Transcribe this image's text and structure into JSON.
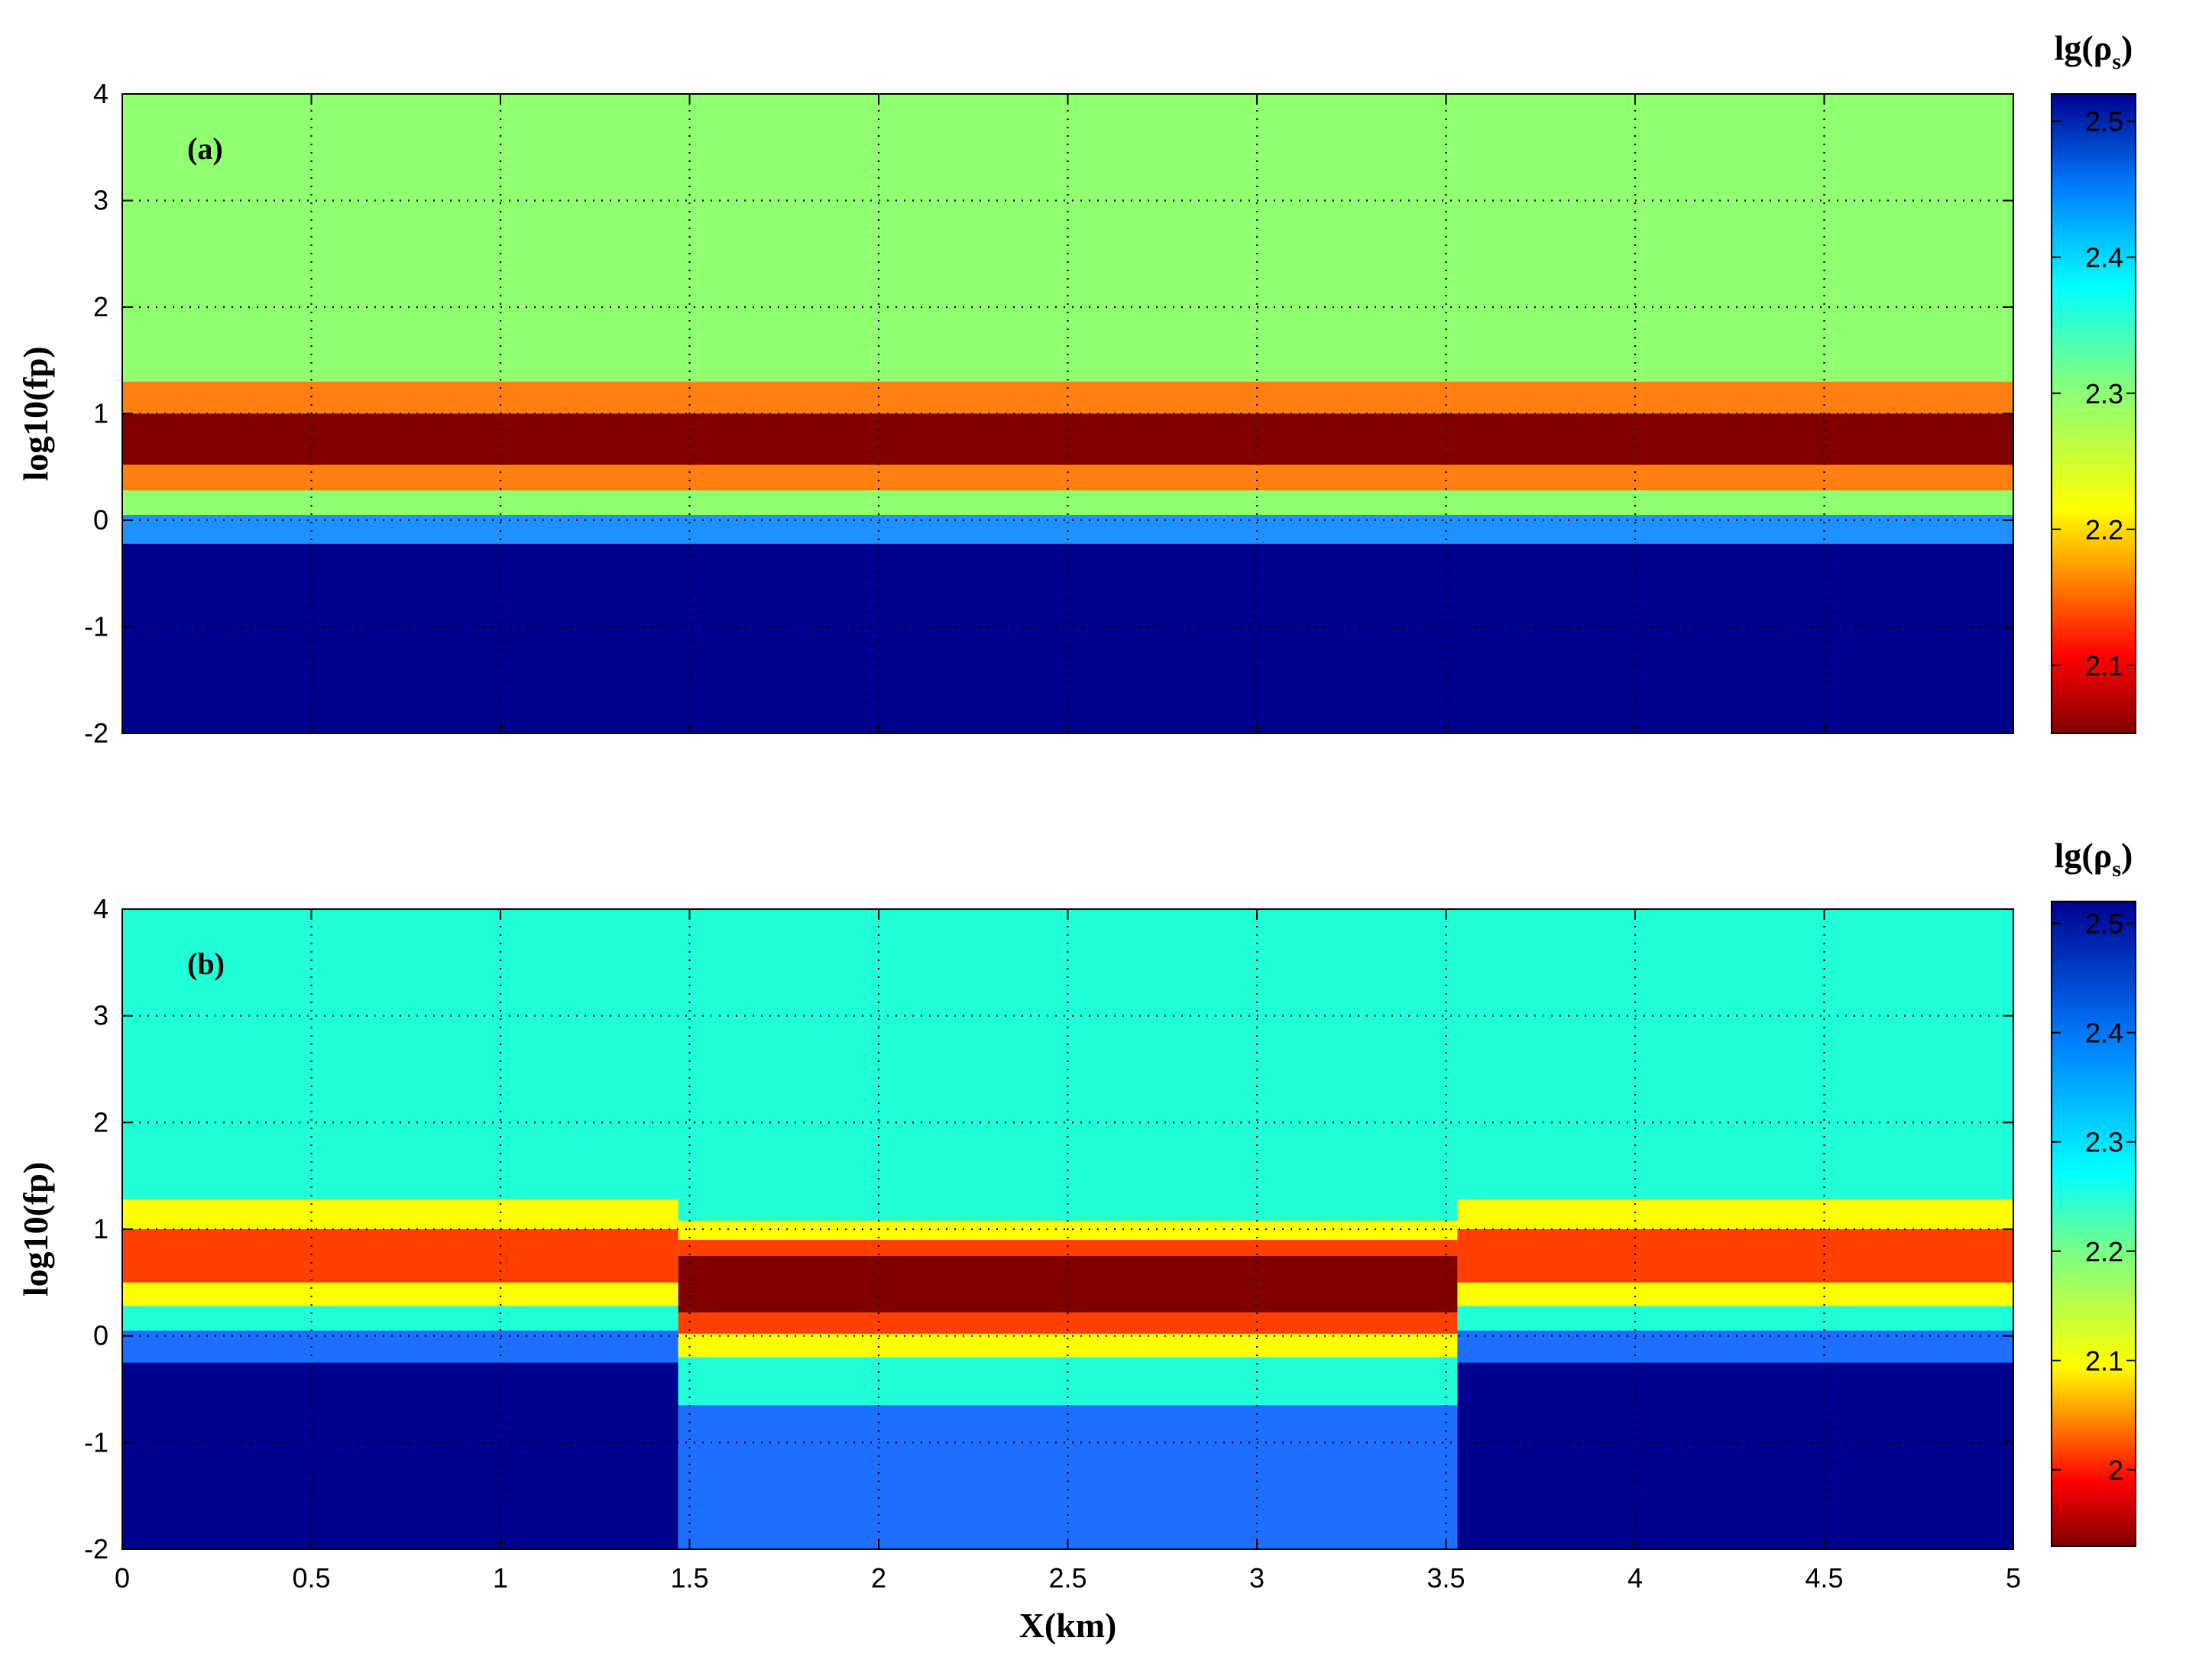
{
  "chart_data": [
    {
      "type": "heatmap",
      "panel_label": "(a)",
      "xlabel": "",
      "ylabel": "log10(fp)",
      "xlim": [
        0,
        5
      ],
      "ylim": [
        -2,
        4
      ],
      "x_ticks": [
        "0",
        "0.5",
        "1",
        "1.5",
        "2",
        "2.5",
        "3",
        "3.5",
        "4",
        "4.5",
        "5"
      ],
      "x_tick_labels_visible": false,
      "y_ticks": [
        "-2",
        "-1",
        "0",
        "1",
        "2",
        "3",
        "4"
      ],
      "grid": true,
      "colorbar": {
        "title": "lg(ρ",
        "title_sub": "s",
        "title_close": ")",
        "range": [
          2.05,
          2.52
        ],
        "ticks": [
          "2.1",
          "2.2",
          "2.3",
          "2.4",
          "2.5"
        ],
        "tick_values": [
          2.1,
          2.2,
          2.3,
          2.4,
          2.5
        ]
      },
      "layers": [
        {
          "y_top": 4.0,
          "y_bottom": 1.3,
          "color": "#90ff70"
        },
        {
          "y_top": 1.3,
          "y_bottom": 1.0,
          "color": "#ff7f10"
        },
        {
          "y_top": 1.0,
          "y_bottom": 0.52,
          "color": "#800000"
        },
        {
          "y_top": 0.52,
          "y_bottom": 0.28,
          "color": "#ff7f10"
        },
        {
          "y_top": 0.28,
          "y_bottom": 0.05,
          "color": "#90ff70"
        },
        {
          "y_top": 0.05,
          "y_bottom": -0.22,
          "color": "#1e90ff"
        },
        {
          "y_top": -0.22,
          "y_bottom": -2.0,
          "color": "#00008f"
        }
      ]
    },
    {
      "type": "heatmap",
      "panel_label": "(b)",
      "xlabel": "X(km)",
      "ylabel": "log10(fp)",
      "xlim": [
        0,
        5
      ],
      "ylim": [
        -2,
        4
      ],
      "x_ticks": [
        "0",
        "0.5",
        "1",
        "1.5",
        "2",
        "2.5",
        "3",
        "3.5",
        "4",
        "4.5",
        "5"
      ],
      "x_tick_labels_visible": true,
      "y_ticks": [
        "-2",
        "-1",
        "0",
        "1",
        "2",
        "3",
        "4"
      ],
      "grid": true,
      "colorbar": {
        "title": "lg(ρ",
        "title_sub": "s",
        "title_close": ")",
        "range": [
          1.93,
          2.52
        ],
        "ticks": [
          "2",
          "2.1",
          "2.2",
          "2.3",
          "2.4",
          "2.5"
        ],
        "tick_values": [
          2.0,
          2.1,
          2.2,
          2.3,
          2.4,
          2.5
        ]
      },
      "background_color": "#20ffd8",
      "outer_layers": [
        {
          "y_top": 1.28,
          "y_bottom": 1.0,
          "color": "#ffff00"
        },
        {
          "y_top": 1.0,
          "y_bottom": 0.5,
          "color": "#ff4000"
        },
        {
          "y_top": 0.5,
          "y_bottom": 0.28,
          "color": "#ffff00"
        },
        {
          "y_top": 0.28,
          "y_bottom": 0.05,
          "color": "#20ffd8"
        },
        {
          "y_top": 0.05,
          "y_bottom": -0.25,
          "color": "#1e6fff"
        },
        {
          "y_top": -0.25,
          "y_bottom": -2.0,
          "color": "#00008f"
        }
      ],
      "anomaly": {
        "x_start": 1.5,
        "x_end": 3.5,
        "layers": [
          {
            "y_top": 1.08,
            "y_bottom": 0.9,
            "color": "#ffff00"
          },
          {
            "y_top": 0.9,
            "y_bottom": 0.75,
            "color": "#ff4000"
          },
          {
            "y_top": 0.75,
            "y_bottom": 0.22,
            "color": "#800000"
          },
          {
            "y_top": 0.22,
            "y_bottom": 0.02,
            "color": "#ff4000"
          },
          {
            "y_top": 0.02,
            "y_bottom": -0.2,
            "color": "#ffff00"
          },
          {
            "y_top": -0.2,
            "y_bottom": -0.65,
            "color": "#20ffd8"
          },
          {
            "y_top": -0.65,
            "y_bottom": -2.0,
            "color": "#1e6fff"
          }
        ]
      }
    }
  ]
}
